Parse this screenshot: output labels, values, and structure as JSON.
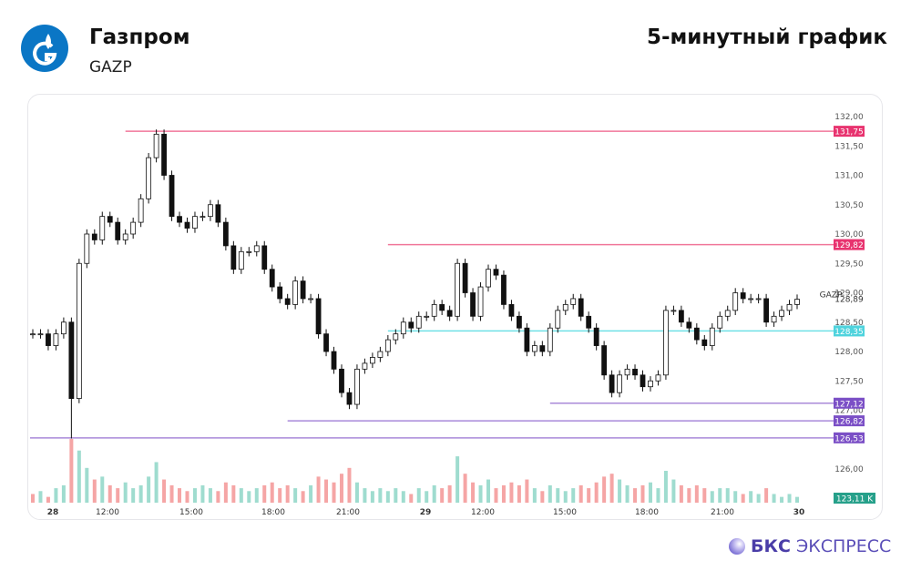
{
  "header": {
    "company": "Газпром",
    "ticker": "GAZP",
    "title": "5-минутный график"
  },
  "brand": {
    "bold": "БКС",
    "rest": "ЭКСПРЕСС"
  },
  "colors": {
    "pink": "#f0769a",
    "pink_badge": "#e8336f",
    "cyan": "#6fe0e6",
    "cyan_badge": "#4fd3dd",
    "purple": "#a98ad9",
    "purple_badge": "#7b4fc6",
    "volume_badge": "#26a08a"
  },
  "chart_data": {
    "type": "candlestick",
    "title": "5-минутный график",
    "y_ticks": [
      "132,00",
      "131,50",
      "131,00",
      "130,50",
      "130,00",
      "129,50",
      "129,00",
      "128,50",
      "128,00",
      "127,50",
      "127,00",
      "126,00"
    ],
    "y_tick_values": [
      132,
      131.5,
      131,
      130.5,
      130,
      129.5,
      129,
      128.5,
      128,
      127.5,
      127,
      126
    ],
    "ylim": [
      126,
      132
    ],
    "x_ticks": [
      "28",
      "12:00",
      "15:00",
      "18:00",
      "21:00",
      "29",
      "12:00",
      "15:00",
      "18:00",
      "21:00",
      "30"
    ],
    "last_price": {
      "label": "GAZP",
      "value": "128,89"
    },
    "levels": [
      {
        "value": 131.75,
        "label": "131,75",
        "color": "pink",
        "start_index": 12
      },
      {
        "value": 129.82,
        "label": "129,82",
        "color": "pink",
        "start_index": 46
      },
      {
        "value": 128.35,
        "label": "128,35",
        "color": "cyan",
        "start_index": 46
      },
      {
        "value": 127.12,
        "label": "127,12",
        "color": "purple",
        "start_index": 67
      },
      {
        "value": 126.82,
        "label": "126,82",
        "color": "purple",
        "start_index": 33
      },
      {
        "value": 126.53,
        "label": "126,53",
        "color": "purple",
        "start_index": 0
      }
    ],
    "volume_label": "123,11 K",
    "closes": [
      128.3,
      128.3,
      128.1,
      128.3,
      128.5,
      127.2,
      129.5,
      130.0,
      129.9,
      130.3,
      130.2,
      129.9,
      130.0,
      130.2,
      130.6,
      131.3,
      131.7,
      131.0,
      130.3,
      130.2,
      130.1,
      130.3,
      130.3,
      130.5,
      130.2,
      129.8,
      129.4,
      129.7,
      129.7,
      129.8,
      129.4,
      129.1,
      128.9,
      128.8,
      129.2,
      128.9,
      128.9,
      128.3,
      128.0,
      127.7,
      127.3,
      127.1,
      127.7,
      127.8,
      127.9,
      128.0,
      128.2,
      128.3,
      128.5,
      128.4,
      128.6,
      128.6,
      128.8,
      128.7,
      128.6,
      129.5,
      129.0,
      128.6,
      129.1,
      129.4,
      129.3,
      128.8,
      128.6,
      128.4,
      128.0,
      128.1,
      128.0,
      128.4,
      128.7,
      128.8,
      128.9,
      128.6,
      128.4,
      128.1,
      127.6,
      127.3,
      127.6,
      127.7,
      127.6,
      127.4,
      127.5,
      127.6,
      128.7,
      128.7,
      128.5,
      128.4,
      128.2,
      128.1,
      128.4,
      128.6,
      128.7,
      129.0,
      128.9,
      128.9,
      128.9,
      128.5,
      128.6,
      128.7,
      128.8,
      128.89
    ],
    "volumes": [
      3,
      4,
      2,
      5,
      6,
      22,
      18,
      12,
      8,
      9,
      6,
      5,
      7,
      5,
      6,
      9,
      14,
      8,
      6,
      5,
      4,
      5,
      6,
      5,
      4,
      7,
      6,
      5,
      4,
      5,
      6,
      7,
      5,
      6,
      5,
      4,
      6,
      9,
      8,
      7,
      10,
      12,
      7,
      5,
      4,
      5,
      4,
      5,
      4,
      3,
      5,
      4,
      6,
      5,
      6,
      16,
      10,
      7,
      6,
      8,
      5,
      6,
      7,
      6,
      8,
      5,
      4,
      6,
      5,
      4,
      5,
      6,
      5,
      7,
      9,
      10,
      8,
      6,
      5,
      6,
      7,
      5,
      11,
      8,
      6,
      5,
      6,
      5,
      4,
      5,
      5,
      4,
      3,
      4,
      3,
      5,
      3,
      2,
      3,
      2
    ]
  }
}
